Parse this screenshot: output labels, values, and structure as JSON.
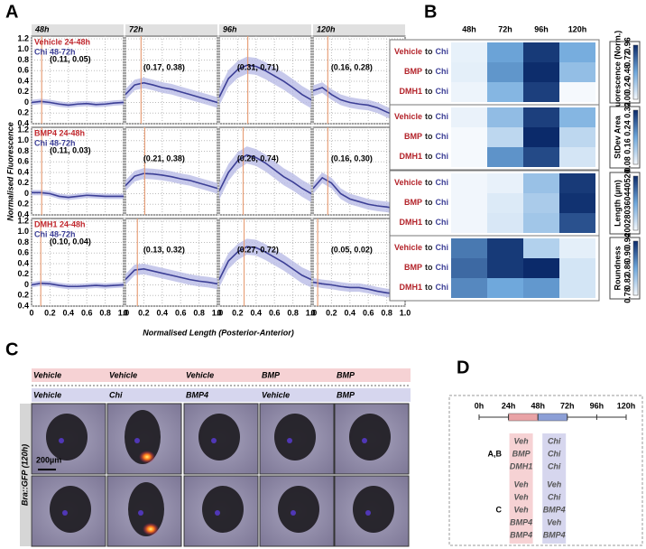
{
  "panel_labels": [
    "A",
    "B",
    "C",
    "D"
  ],
  "chart_data": [
    {
      "type": "line-grid",
      "xlabel": "Normalised Length (Posterior-Anterior)",
      "ylabel": "Normalised Fluorescence",
      "xlim": [
        0,
        1
      ],
      "ylim": [
        -0.4,
        1.25
      ],
      "xticks": [
        0,
        {
          "value": 0.2,
          "label": "0.2"
        },
        {
          "value": 0.4,
          "label": "0.4"
        },
        {
          "value": 0.6,
          "label": "0.6"
        },
        {
          "value": 0.8,
          "label": "0.8"
        },
        {
          "value": 1,
          "label": "1.0"
        }
      ],
      "yticks": [
        {
          "value": -0.4,
          "label": "0.4"
        },
        {
          "value": -0.2,
          "label": "0.2"
        },
        0,
        0.2,
        0.4,
        0.6,
        0.8,
        {
          "value": 1,
          "label": "1.0"
        },
        1.2
      ],
      "columns": [
        "48h",
        "72h",
        "96h",
        "120h"
      ],
      "x": [
        0,
        0.1,
        0.2,
        0.3,
        0.4,
        0.5,
        0.6,
        0.7,
        0.8,
        0.9,
        1
      ],
      "line_color": "#3c3f96",
      "band_color": "#b9bce6",
      "marker_color": "#e8a07a",
      "rows": [
        {
          "treatment": "Vehicle 24-48h",
          "chi": "Chi 48-72h",
          "panels": [
            {
              "values": [
                0,
                0.02,
                0,
                -0.03,
                -0.05,
                -0.03,
                -0.02,
                -0.04,
                -0.03,
                -0.01,
                0
              ],
              "band": 0.05,
              "peak": [
                0.11,
                0.05
              ],
              "peak_label": "(0.11, 0.05)"
            },
            {
              "values": [
                0.15,
                0.33,
                0.37,
                0.33,
                0.28,
                0.25,
                0.2,
                0.15,
                0.1,
                0.05,
                0
              ],
              "band": 0.1,
              "peak": [
                0.17,
                0.38
              ],
              "peak_label": "(0.17, 0.38)"
            },
            {
              "values": [
                0.1,
                0.45,
                0.62,
                0.7,
                0.68,
                0.6,
                0.5,
                0.4,
                0.28,
                0.15,
                0.05
              ],
              "band": 0.16,
              "peak": [
                0.31,
                0.71
              ],
              "peak_label": "(0.31, 0.71)"
            },
            {
              "values": [
                0.22,
                0.28,
                0.15,
                0.05,
                0,
                -0.03,
                -0.05,
                -0.1,
                -0.18,
                -0.25,
                -0.1
              ],
              "band": 0.1,
              "peak": [
                0.16,
                0.28
              ],
              "peak_label": "(0.16, 0.28)"
            }
          ]
        },
        {
          "treatment": "BMP4 24-48h",
          "chi": "Chi 48-72h",
          "panels": [
            {
              "values": [
                0.02,
                0.02,
                0,
                -0.05,
                -0.07,
                -0.05,
                -0.03,
                -0.04,
                -0.05,
                -0.05,
                -0.05
              ],
              "band": 0.05,
              "peak": [
                0.11,
                0.03
              ],
              "peak_label": "(0.11, 0.03)"
            },
            {
              "values": [
                0.15,
                0.33,
                0.38,
                0.37,
                0.35,
                0.32,
                0.28,
                0.25,
                0.2,
                0.15,
                0.1
              ],
              "band": 0.1,
              "peak": [
                0.21,
                0.38
              ],
              "peak_label": "(0.21, 0.38)"
            },
            {
              "values": [
                0.05,
                0.4,
                0.62,
                0.73,
                0.68,
                0.58,
                0.45,
                0.32,
                0.22,
                0.1,
                0
              ],
              "band": 0.16,
              "peak": [
                0.26,
                0.74
              ],
              "peak_label": "(0.26, 0.74)"
            },
            {
              "values": [
                0.1,
                0.3,
                0.2,
                0,
                -0.1,
                -0.15,
                -0.2,
                -0.23,
                -0.25,
                -0.28,
                -0.2
              ],
              "band": 0.1,
              "peak": [
                0.16,
                0.3
              ],
              "peak_label": "(0.16, 0.30)"
            }
          ]
        },
        {
          "treatment": "DMH1 24-48h",
          "chi": "Chi 48-72h",
          "panels": [
            {
              "values": [
                0,
                0.03,
                0.02,
                -0.01,
                -0.03,
                -0.03,
                -0.02,
                -0.01,
                -0.02,
                -0.01,
                0
              ],
              "band": 0.05,
              "peak": [
                0.1,
                0.04
              ],
              "peak_label": "(0.10, 0.04)"
            },
            {
              "values": [
                0.1,
                0.28,
                0.3,
                0.26,
                0.22,
                0.18,
                0.14,
                0.1,
                0.07,
                0.05,
                0.02
              ],
              "band": 0.1,
              "peak": [
                0.13,
                0.32
              ],
              "peak_label": "(0.13, 0.32)"
            },
            {
              "values": [
                0.1,
                0.45,
                0.62,
                0.72,
                0.7,
                0.62,
                0.52,
                0.42,
                0.3,
                0.18,
                0.1
              ],
              "band": 0.15,
              "peak": [
                0.27,
                0.72
              ],
              "peak_label": "(0.27, 0.72)"
            },
            {
              "values": [
                0.05,
                0.02,
                0,
                -0.03,
                -0.05,
                -0.05,
                -0.08,
                -0.12,
                -0.15,
                -0.17,
                -0.15
              ],
              "band": 0.08,
              "peak": [
                0.05,
                0.02
              ],
              "peak_label": "(0.05, 0.02)"
            }
          ]
        }
      ]
    },
    {
      "type": "heatmap",
      "columns": [
        "48h",
        "72h",
        "96h",
        "120h"
      ],
      "rows": [
        {
          "treatment": "Vehicle",
          "joiner": "to",
          "chi": "Chi"
        },
        {
          "treatment": "BMP",
          "joiner": "to",
          "chi": "Chi"
        },
        {
          "treatment": "DMH1",
          "joiner": "to",
          "chi": "Chi"
        }
      ],
      "blocks": [
        {
          "title": "Fluorescence (Norm.)",
          "clim": [
            0,
            0.96
          ],
          "ticks": [
            {
              "value": 0,
              "label": "0.00"
            },
            {
              "value": 0.24,
              "label": "0.24"
            },
            {
              "value": 0.48,
              "label": "0.48"
            },
            {
              "value": 0.72,
              "label": "0.72"
            },
            {
              "value": 0.96,
              "label": "0.96"
            }
          ],
          "values": [
            [
              0.05,
              0.5,
              0.9,
              0.45
            ],
            [
              0.06,
              0.55,
              0.95,
              0.35
            ],
            [
              0.03,
              0.4,
              0.88,
              0
            ]
          ]
        },
        {
          "title": "StDev Area",
          "clim": [
            0.08,
            0.32
          ],
          "ticks": [
            {
              "value": 0.08,
              "label": "0.08"
            },
            {
              "value": 0.16,
              "label": "0.16"
            },
            {
              "value": 0.24,
              "label": "0.24"
            },
            {
              "value": 0.32,
              "label": "0.32"
            }
          ],
          "values": [
            [
              0.09,
              0.17,
              0.3,
              0.18
            ],
            [
              0.08,
              0.13,
              0.32,
              0.13
            ],
            [
              0.08,
              0.22,
              0.29,
              0.11
            ]
          ]
        },
        {
          "title": "Length (µm)",
          "clim": [
            200,
            520
          ],
          "ticks": [
            200,
            280,
            360,
            440,
            520
          ],
          "values": [
            [
              205,
              215,
              310,
              500
            ],
            [
              205,
              230,
              290,
              510
            ],
            [
              205,
              235,
              300,
              470
            ]
          ]
        },
        {
          "title": "Roundness",
          "clim": [
            0.78,
            0.94
          ],
          "ticks": [
            0.78,
            0.82,
            0.86,
            {
              "value": 0.9,
              "label": "0.90"
            },
            0.94
          ],
          "values": [
            [
              0.89,
              0.93,
              0.82,
              0.79
            ],
            [
              0.9,
              0.93,
              0.94,
              0.8
            ],
            [
              0.88,
              0.86,
              0.87,
              0.8
            ]
          ]
        }
      ]
    }
  ],
  "panel_c": {
    "first": [
      "Vehicle",
      "Vehicle",
      "Vehicle",
      "BMP",
      "BMP"
    ],
    "second": [
      "Vehicle",
      "Chi",
      "BMP4",
      "Vehicle",
      "BMP"
    ],
    "reporter": "Bra::GFP (120h)",
    "scale": "200µm"
  },
  "panel_d": {
    "ticks": [
      {
        "value": 0,
        "label": "0h"
      },
      {
        "value": 24,
        "label": "24h"
      },
      {
        "value": 48,
        "label": "48h"
      },
      {
        "value": 72,
        "label": "72h"
      },
      {
        "value": 96,
        "label": "96h"
      },
      {
        "value": 120,
        "label": "120h"
      }
    ],
    "phases": [
      {
        "start": 24,
        "end": 48,
        "color": "#e9a3a6"
      },
      {
        "start": 48,
        "end": 72,
        "color": "#8c9fd6"
      }
    ],
    "groups": [
      {
        "label": "A,B",
        "rows": [
          [
            "Veh",
            "Chi"
          ],
          [
            "BMP",
            "Chi"
          ],
          [
            "DMH1",
            "Chi"
          ]
        ]
      },
      {
        "label": "C",
        "rows": [
          [
            "Veh",
            "Veh"
          ],
          [
            "Veh",
            "Chi"
          ],
          [
            "Veh",
            "BMP4"
          ],
          [
            "BMP4",
            "Veh"
          ],
          [
            "BMP4",
            "BMP4"
          ]
        ]
      }
    ]
  }
}
